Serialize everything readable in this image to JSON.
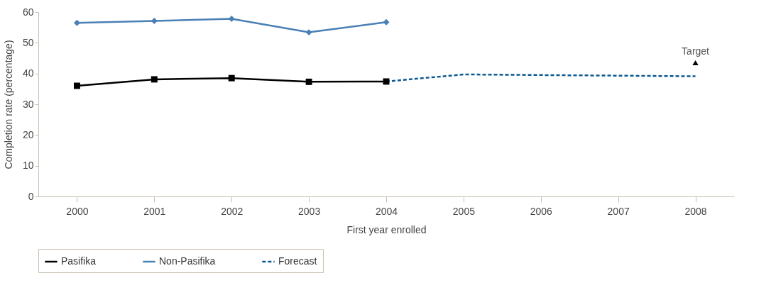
{
  "chart_data": {
    "type": "line",
    "xlabel": "First year enrolled",
    "ylabel": "Completion rate (percentage)",
    "categories": [
      "2000",
      "2001",
      "2002",
      "2003",
      "2004",
      "2005",
      "2006",
      "2007",
      "2008"
    ],
    "series": [
      {
        "name": "Pasifika",
        "color": "#000000",
        "marker": "square",
        "line_style": "solid",
        "values": [
          36.0,
          38.1,
          38.5,
          37.3,
          37.4,
          null,
          null,
          null,
          null
        ]
      },
      {
        "name": "Non-Pasifika",
        "color": "#4a80b6",
        "marker": "diamond",
        "line_style": "solid",
        "values": [
          56.5,
          57.1,
          57.8,
          53.4,
          56.7,
          null,
          null,
          null,
          null
        ]
      },
      {
        "name": "Forecast",
        "color": "#0b5a91",
        "marker": "none",
        "line_style": "dashed",
        "values": [
          null,
          null,
          null,
          null,
          37.4,
          39.7,
          39.5,
          39.3,
          39.1
        ]
      },
      {
        "type": "scatter",
        "color": "#000000",
        "marker": "triangle",
        "values": [
          null,
          null,
          null,
          null,
          null,
          null,
          null,
          null,
          43.5
        ]
      }
    ],
    "annotations": [
      {
        "text": "Target",
        "x": "2008",
        "y": 43.5
      }
    ],
    "ylim": [
      0,
      60
    ],
    "yticks": [
      0,
      10,
      20,
      30,
      40,
      50,
      60
    ],
    "grid": false,
    "legend": "bottom"
  }
}
